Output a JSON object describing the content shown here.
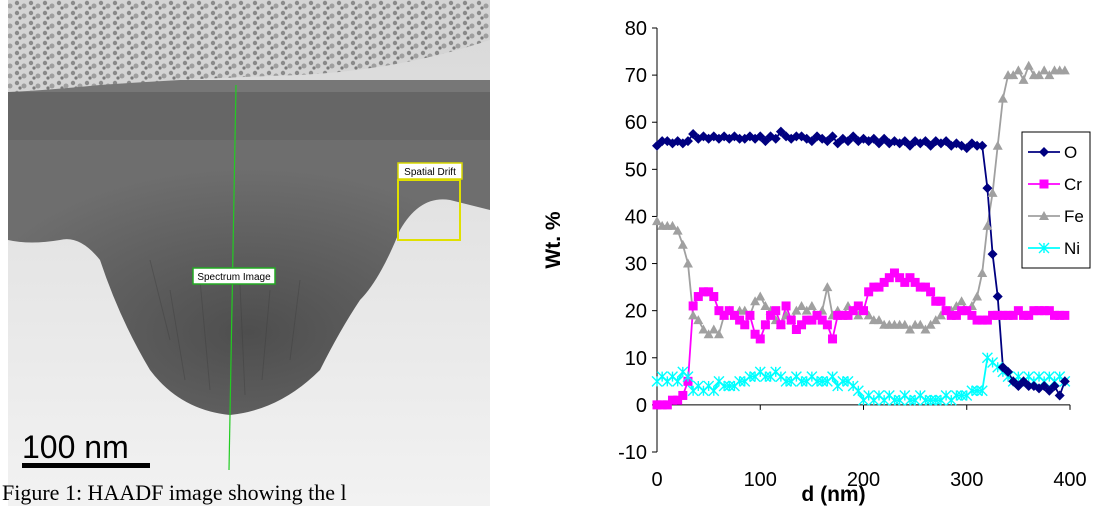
{
  "figure": {
    "caption": "Figure 1: HAADF image showing the l",
    "scale_bar_label": "100 nm",
    "annotations": {
      "spectrum_image": "Spectrum Image",
      "spatial_drift": "Spatial Drift"
    }
  },
  "chart_data": {
    "type": "line",
    "xlabel": "d (nm)",
    "ylabel": "Wt. %",
    "xlim": [
      0,
      400
    ],
    "ylim": [
      -10,
      80
    ],
    "x_ticks": [
      "0",
      "100",
      "200",
      "300",
      "400"
    ],
    "y_ticks": [
      "-10",
      "0",
      "10",
      "20",
      "30",
      "40",
      "50",
      "60",
      "70",
      "80"
    ],
    "grid": false,
    "legend_position": "right",
    "x": [
      0,
      5,
      10,
      15,
      20,
      25,
      30,
      35,
      40,
      45,
      50,
      55,
      60,
      65,
      70,
      75,
      80,
      85,
      90,
      95,
      100,
      105,
      110,
      115,
      120,
      125,
      130,
      135,
      140,
      145,
      150,
      155,
      160,
      165,
      170,
      175,
      180,
      185,
      190,
      195,
      200,
      205,
      210,
      215,
      220,
      225,
      230,
      235,
      240,
      245,
      250,
      255,
      260,
      265,
      270,
      275,
      280,
      285,
      290,
      295,
      300,
      305,
      310,
      315,
      320,
      325,
      330,
      335,
      340,
      345,
      350,
      355,
      360,
      365,
      370,
      375,
      380,
      385,
      390,
      395
    ],
    "series": [
      {
        "name": "O",
        "color": "#000080",
        "marker": "diamond",
        "values": [
          55,
          56,
          56,
          55.5,
          56,
          55.5,
          56,
          57.5,
          56.5,
          57,
          56.5,
          57,
          56.5,
          57,
          56.5,
          57,
          56.5,
          56.5,
          57,
          56.5,
          57,
          56,
          57,
          56.5,
          58,
          57,
          56.5,
          57,
          57,
          56.5,
          56,
          57,
          56.5,
          56,
          57,
          55.5,
          56.5,
          56,
          57,
          56,
          56.5,
          56,
          56.5,
          55.5,
          56.5,
          55.5,
          56,
          55.5,
          56,
          55,
          56,
          55.5,
          56,
          55,
          56,
          55.5,
          56,
          55,
          55.5,
          55,
          54.5,
          55.5,
          55,
          55,
          46,
          32,
          23,
          8,
          7,
          5,
          4,
          5,
          4,
          4,
          3.5,
          4,
          3,
          4,
          2,
          5
        ]
      },
      {
        "name": "Cr",
        "color": "#FF00FF",
        "marker": "square",
        "values": [
          0,
          0,
          0,
          1,
          1,
          2,
          5,
          21,
          23,
          24,
          24,
          23,
          20,
          19,
          20,
          19,
          18,
          17,
          19,
          15,
          14,
          17,
          19,
          20,
          17,
          21,
          18,
          16,
          17,
          18,
          18,
          19,
          18,
          17,
          14,
          19,
          19,
          19,
          20,
          21,
          20,
          24,
          25,
          25,
          26,
          27,
          28,
          27,
          26,
          27,
          26,
          25,
          25,
          24,
          22,
          22,
          20,
          19,
          19,
          20,
          20,
          19,
          18,
          18,
          18,
          19,
          19,
          19,
          19,
          19,
          20,
          19,
          19,
          20,
          20,
          20,
          20,
          19,
          19,
          19
        ]
      },
      {
        "name": "Fe",
        "color": "#A0A0A0",
        "marker": "triangle",
        "values": [
          39,
          38,
          38,
          38,
          37,
          34,
          30,
          19,
          18,
          16,
          15,
          16,
          15,
          19,
          20,
          19,
          20,
          20,
          19,
          22,
          23,
          21,
          20,
          18,
          17,
          19,
          18,
          20,
          21,
          20,
          21,
          19,
          20,
          25,
          19,
          20,
          19,
          21,
          20,
          19,
          20,
          19,
          18,
          18,
          17,
          17,
          17,
          17,
          17,
          16,
          17,
          17,
          16,
          17,
          18,
          19,
          20,
          20,
          21,
          22,
          20,
          21,
          23,
          28,
          38,
          45,
          55,
          65,
          70,
          70,
          71,
          69,
          72,
          70,
          70,
          71,
          70,
          71,
          71,
          71
        ]
      },
      {
        "name": "Ni",
        "color": "#00FFFF",
        "marker": "x",
        "values": [
          5,
          6,
          5,
          6,
          5,
          7,
          6,
          3,
          4,
          3,
          4,
          3,
          5,
          4,
          4,
          4,
          5,
          5,
          6,
          6,
          7,
          6,
          6,
          7,
          6,
          5,
          5,
          6,
          5,
          5,
          6,
          5,
          5,
          5,
          6,
          4,
          5,
          5,
          4,
          3,
          1,
          2,
          1,
          2,
          1,
          2,
          1,
          1,
          2,
          1,
          1,
          2,
          1,
          1,
          1,
          1,
          2,
          1,
          2,
          2,
          2,
          3,
          3,
          3,
          10,
          9,
          8,
          7,
          6,
          5,
          6,
          5,
          6,
          5,
          6,
          5,
          6,
          5,
          6,
          5
        ]
      }
    ]
  }
}
